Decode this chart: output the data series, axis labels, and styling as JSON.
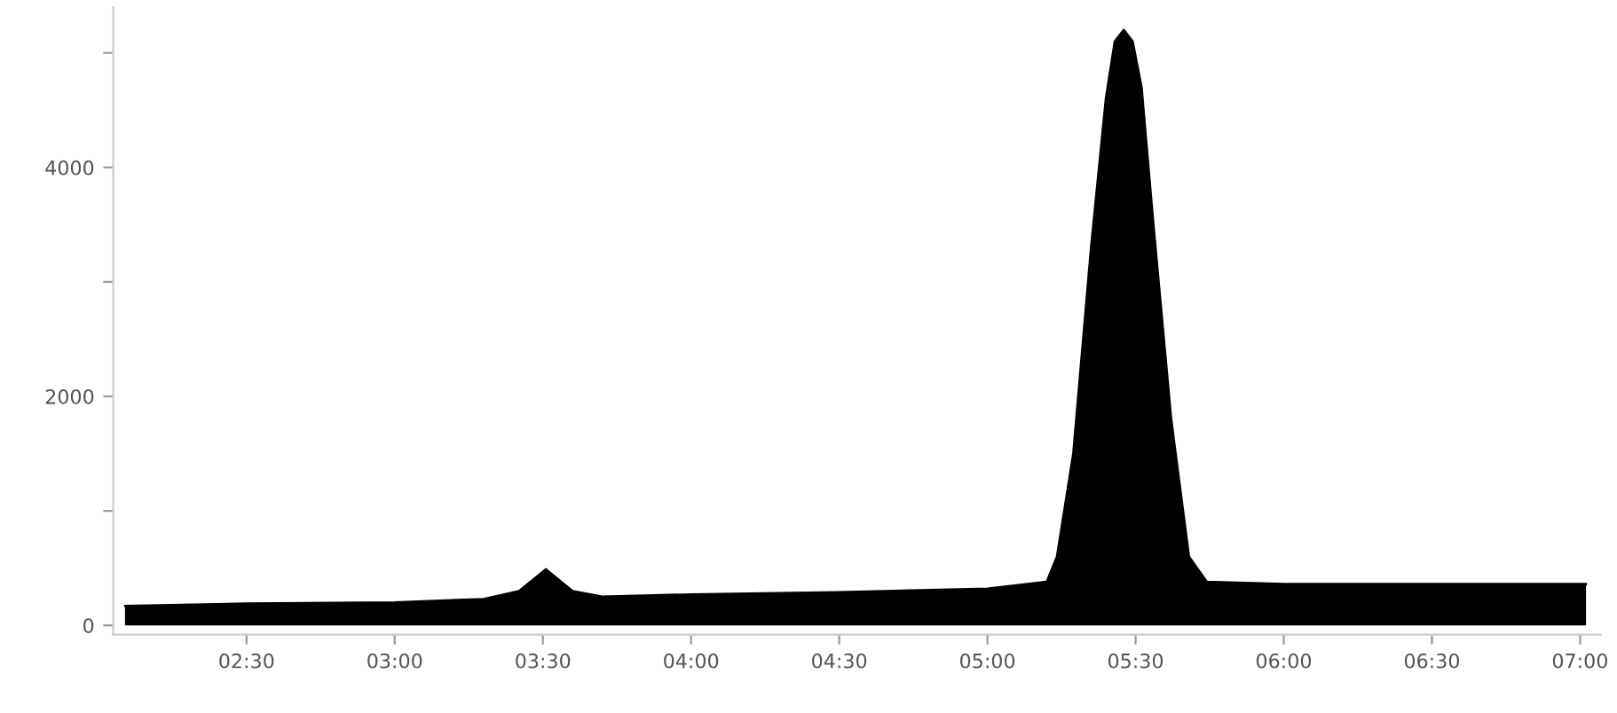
{
  "chart_data": {
    "type": "area",
    "x": [
      2.09,
      2.5,
      3.0,
      3.3,
      3.42,
      3.51,
      3.6,
      3.7,
      4.0,
      4.5,
      5.0,
      5.2,
      5.235,
      5.29,
      5.35,
      5.4,
      5.43,
      5.46,
      5.49,
      5.52,
      5.56,
      5.62,
      5.68,
      5.74,
      6.0,
      6.5,
      7.02
    ],
    "series": [
      {
        "color": "#000000",
        "values": [
          170,
          190,
          200,
          230,
          300,
          490,
          300,
          250,
          270,
          290,
          320,
          380,
          600,
          1500,
          3300,
          4600,
          5100,
          5200,
          5100,
          4700,
          3500,
          1800,
          600,
          380,
          360,
          360,
          360
        ]
      }
    ],
    "xlim": [
      2.05,
      7.07
    ],
    "xticks": [
      {
        "value": 2.5,
        "label": "02:30"
      },
      {
        "value": 3.0,
        "label": "03:00"
      },
      {
        "value": 3.5,
        "label": "03:30"
      },
      {
        "value": 4.0,
        "label": "04:00"
      },
      {
        "value": 4.5,
        "label": "04:30"
      },
      {
        "value": 5.0,
        "label": "05:00"
      },
      {
        "value": 5.5,
        "label": "05:30"
      },
      {
        "value": 6.0,
        "label": "06:00"
      },
      {
        "value": 6.5,
        "label": "06:30"
      },
      {
        "value": 7.0,
        "label": "07:00"
      }
    ],
    "ylim": [
      -80,
      5400
    ],
    "yticks": [
      0,
      {
        "value": 1000,
        "label": null
      },
      2000,
      {
        "value": 3000,
        "label": null
      },
      4000,
      {
        "value": 5000,
        "label": null
      }
    ],
    "grid": false
  }
}
